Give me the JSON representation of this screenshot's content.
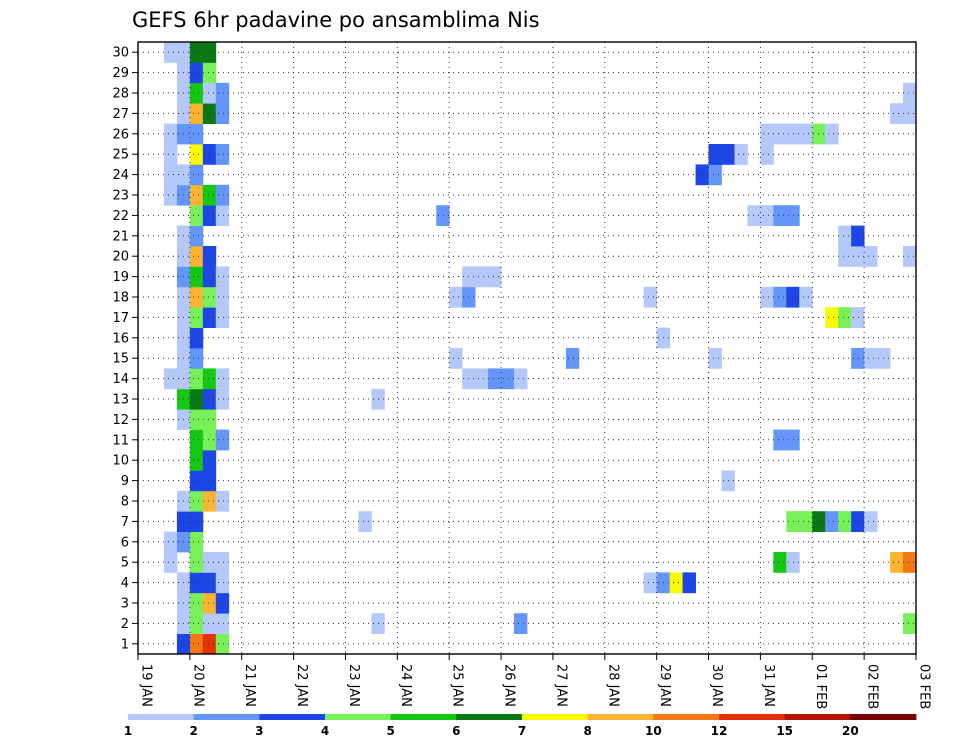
{
  "chart_data": {
    "type": "heatmap",
    "title": "GEFS 6hr padavine po ansamblima Nis",
    "x": {
      "tick_labels": [
        "19 JAN",
        "20 JAN",
        "21 JAN",
        "22 JAN",
        "23 JAN",
        "24 JAN",
        "25 JAN",
        "26 JAN",
        "27 JAN",
        "28 JAN",
        "29 JAN",
        "30 JAN",
        "31 JAN",
        "01 FEB",
        "02 FEB",
        "03 FEB"
      ],
      "unit": "6-hour step",
      "steps_per_day": 4,
      "range_steps": [
        0,
        60
      ]
    },
    "y": {
      "tick_labels": [
        "1",
        "2",
        "3",
        "4",
        "5",
        "6",
        "7",
        "8",
        "9",
        "10",
        "11",
        "12",
        "13",
        "14",
        "15",
        "16",
        "17",
        "18",
        "19",
        "20",
        "21",
        "22",
        "23",
        "24",
        "25",
        "26",
        "27",
        "28",
        "29",
        "30"
      ],
      "range": [
        0,
        30
      ]
    },
    "grid": "dotted",
    "legend": {
      "placement": "bottom",
      "colors": [
        "#b4c8fa",
        "#6496fa",
        "#1e46e6",
        "#78f05a",
        "#14c814",
        "#0a7814",
        "#fafa00",
        "#fab432",
        "#f57814",
        "#e6320a",
        "#b41400",
        "#780000"
      ],
      "labels": [
        "1",
        "2",
        "3",
        "4",
        "5",
        "6",
        "7",
        "8",
        "10",
        "12",
        "15",
        "20"
      ]
    },
    "data": [
      [
        1,
        4,
        3
      ],
      [
        1,
        5,
        9
      ],
      [
        1,
        6,
        10
      ],
      [
        1,
        7,
        4
      ],
      [
        2,
        4,
        1
      ],
      [
        2,
        5,
        4
      ],
      [
        2,
        6,
        1
      ],
      [
        2,
        7,
        1
      ],
      [
        2,
        19,
        1
      ],
      [
        2,
        30,
        2
      ],
      [
        2,
        60,
        4
      ],
      [
        3,
        4,
        1
      ],
      [
        3,
        5,
        4
      ],
      [
        3,
        6,
        8
      ],
      [
        3,
        7,
        3
      ],
      [
        4,
        4,
        1
      ],
      [
        4,
        5,
        3
      ],
      [
        4,
        6,
        3
      ],
      [
        4,
        7,
        1
      ],
      [
        4,
        40,
        1
      ],
      [
        4,
        41,
        2
      ],
      [
        4,
        42,
        7
      ],
      [
        4,
        43,
        3
      ],
      [
        5,
        3,
        1
      ],
      [
        5,
        5,
        4
      ],
      [
        5,
        6,
        1
      ],
      [
        5,
        7,
        1
      ],
      [
        5,
        50,
        5
      ],
      [
        5,
        51,
        1
      ],
      [
        5,
        59,
        8
      ],
      [
        5,
        60,
        9
      ],
      [
        6,
        3,
        1
      ],
      [
        6,
        4,
        2
      ],
      [
        6,
        5,
        4
      ],
      [
        7,
        4,
        3
      ],
      [
        7,
        5,
        3
      ],
      [
        7,
        18,
        1
      ],
      [
        7,
        51,
        4
      ],
      [
        7,
        52,
        4
      ],
      [
        7,
        53,
        6
      ],
      [
        7,
        54,
        2
      ],
      [
        7,
        55,
        4
      ],
      [
        7,
        56,
        3
      ],
      [
        7,
        57,
        1
      ],
      [
        8,
        4,
        1
      ],
      [
        8,
        5,
        4
      ],
      [
        8,
        6,
        8
      ],
      [
        8,
        7,
        1
      ],
      [
        9,
        5,
        3
      ],
      [
        9,
        6,
        3
      ],
      [
        9,
        46,
        1
      ],
      [
        10,
        5,
        5
      ],
      [
        10,
        6,
        3
      ],
      [
        11,
        5,
        5
      ],
      [
        11,
        6,
        4
      ],
      [
        11,
        7,
        2
      ],
      [
        11,
        50,
        2
      ],
      [
        11,
        51,
        2
      ],
      [
        12,
        4,
        1
      ],
      [
        12,
        5,
        4
      ],
      [
        12,
        6,
        4
      ],
      [
        13,
        4,
        5
      ],
      [
        13,
        5,
        6
      ],
      [
        13,
        6,
        3
      ],
      [
        13,
        7,
        1
      ],
      [
        13,
        19,
        1
      ],
      [
        14,
        3,
        1
      ],
      [
        14,
        4,
        1
      ],
      [
        14,
        5,
        4
      ],
      [
        14,
        6,
        5
      ],
      [
        14,
        7,
        1
      ],
      [
        14,
        26,
        1
      ],
      [
        14,
        27,
        1
      ],
      [
        14,
        28,
        2
      ],
      [
        14,
        29,
        2
      ],
      [
        14,
        30,
        1
      ],
      [
        15,
        4,
        1
      ],
      [
        15,
        5,
        2
      ],
      [
        15,
        25,
        1
      ],
      [
        15,
        34,
        2
      ],
      [
        15,
        45,
        1
      ],
      [
        15,
        56,
        2
      ],
      [
        15,
        57,
        1
      ],
      [
        15,
        58,
        1
      ],
      [
        16,
        4,
        1
      ],
      [
        16,
        5,
        3
      ],
      [
        16,
        41,
        1
      ],
      [
        17,
        4,
        1
      ],
      [
        17,
        5,
        4
      ],
      [
        17,
        6,
        3
      ],
      [
        17,
        7,
        1
      ],
      [
        17,
        54,
        7
      ],
      [
        17,
        55,
        4
      ],
      [
        17,
        56,
        1
      ],
      [
        18,
        4,
        1
      ],
      [
        18,
        5,
        8
      ],
      [
        18,
        6,
        4
      ],
      [
        18,
        7,
        1
      ],
      [
        18,
        25,
        1
      ],
      [
        18,
        26,
        2
      ],
      [
        18,
        40,
        1
      ],
      [
        18,
        49,
        1
      ],
      [
        18,
        50,
        2
      ],
      [
        18,
        51,
        3
      ],
      [
        18,
        52,
        1
      ],
      [
        19,
        4,
        2
      ],
      [
        19,
        5,
        5
      ],
      [
        19,
        6,
        3
      ],
      [
        19,
        7,
        1
      ],
      [
        19,
        26,
        1
      ],
      [
        19,
        27,
        1
      ],
      [
        19,
        28,
        1
      ],
      [
        20,
        4,
        1
      ],
      [
        20,
        5,
        8
      ],
      [
        20,
        6,
        3
      ],
      [
        20,
        55,
        1
      ],
      [
        20,
        56,
        1
      ],
      [
        20,
        57,
        1
      ],
      [
        20,
        60,
        1
      ],
      [
        21,
        4,
        1
      ],
      [
        21,
        5,
        2
      ],
      [
        21,
        55,
        1
      ],
      [
        21,
        56,
        3
      ],
      [
        22,
        5,
        4
      ],
      [
        22,
        6,
        3
      ],
      [
        22,
        7,
        1
      ],
      [
        22,
        24,
        2
      ],
      [
        22,
        48,
        1
      ],
      [
        22,
        49,
        1
      ],
      [
        22,
        50,
        2
      ],
      [
        22,
        51,
        2
      ],
      [
        23,
        3,
        1
      ],
      [
        23,
        4,
        2
      ],
      [
        23,
        5,
        8
      ],
      [
        23,
        6,
        5
      ],
      [
        23,
        7,
        2
      ],
      [
        24,
        3,
        1
      ],
      [
        24,
        4,
        1
      ],
      [
        24,
        5,
        2
      ],
      [
        24,
        44,
        3
      ],
      [
        24,
        45,
        2
      ],
      [
        25,
        3,
        1
      ],
      [
        25,
        5,
        7
      ],
      [
        25,
        6,
        3
      ],
      [
        25,
        7,
        2
      ],
      [
        25,
        45,
        3
      ],
      [
        25,
        46,
        3
      ],
      [
        25,
        47,
        1
      ],
      [
        25,
        49,
        1
      ],
      [
        26,
        3,
        1
      ],
      [
        26,
        4,
        2
      ],
      [
        26,
        5,
        2
      ],
      [
        26,
        49,
        1
      ],
      [
        26,
        50,
        1
      ],
      [
        26,
        51,
        1
      ],
      [
        26,
        52,
        1
      ],
      [
        26,
        53,
        4
      ],
      [
        26,
        54,
        1
      ],
      [
        27,
        4,
        1
      ],
      [
        27,
        5,
        8
      ],
      [
        27,
        6,
        6
      ],
      [
        27,
        7,
        2
      ],
      [
        27,
        59,
        1
      ],
      [
        27,
        60,
        1
      ],
      [
        28,
        4,
        1
      ],
      [
        28,
        5,
        5
      ],
      [
        28,
        6,
        1
      ],
      [
        28,
        7,
        2
      ],
      [
        28,
        60,
        1
      ],
      [
        29,
        4,
        1
      ],
      [
        29,
        5,
        3
      ],
      [
        29,
        6,
        4
      ],
      [
        30,
        3,
        1
      ],
      [
        30,
        4,
        1
      ],
      [
        30,
        5,
        6
      ],
      [
        30,
        6,
        6
      ]
    ]
  }
}
